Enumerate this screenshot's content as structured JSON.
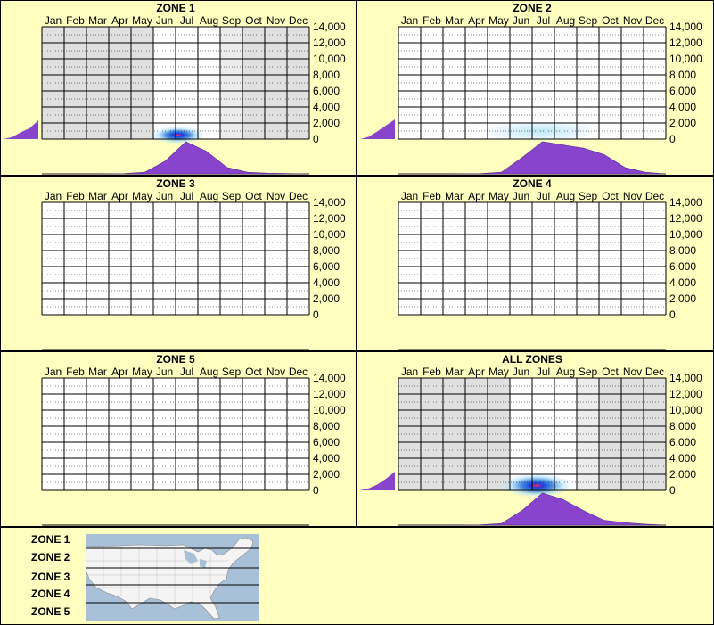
{
  "months": [
    "Jan",
    "Feb",
    "Mar",
    "Apr",
    "May",
    "Jun",
    "Jul",
    "Aug",
    "Sep",
    "Oct",
    "Nov",
    "Dec"
  ],
  "elevation_ticks": [
    "14,000",
    "12,000",
    "10,000",
    "8,000",
    "6,000",
    "4,000",
    "2,000",
    "0"
  ],
  "colors": {
    "background": "#ffffc0",
    "inactive_month": "#e0e0e0",
    "active_month": "#ffffff",
    "density": "#8844cc",
    "heat_low": "#aadfff",
    "heat_mid": "#1a3fdd",
    "heat_high": "#ff2266"
  },
  "chart_data": [
    {
      "type": "heatmap",
      "title": "ZONE 1",
      "x": [
        "Jan",
        "Feb",
        "Mar",
        "Apr",
        "May",
        "Jun",
        "Jul",
        "Aug",
        "Sep",
        "Oct",
        "Nov",
        "Dec"
      ],
      "ylim": [
        0,
        14000
      ],
      "grey_months": [
        "Jan",
        "Feb",
        "Mar",
        "Apr",
        "May",
        "Sep",
        "Oct",
        "Nov",
        "Dec"
      ],
      "lighter_grey_months": [
        "Sep"
      ],
      "hotspots": [
        {
          "month_index": 6.1,
          "elevation": 500,
          "intensity": 0.9,
          "spread_months": 1.2,
          "spread_elev": 1100
        }
      ],
      "month_density": [
        0,
        0,
        0,
        0,
        0.01,
        0.05,
        0.4,
        1.0,
        0.7,
        0.2,
        0.05,
        0.02,
        0.01,
        0
      ],
      "elevation_density": [
        0,
        0.1,
        0.35,
        0.55,
        0.95
      ]
    },
    {
      "type": "heatmap",
      "title": "ZONE 2",
      "x": [
        "Jan",
        "Feb",
        "Mar",
        "Apr",
        "May",
        "Jun",
        "Jul",
        "Aug",
        "Sep",
        "Oct",
        "Nov",
        "Dec"
      ],
      "ylim": [
        0,
        14000
      ],
      "grey_months": [],
      "lighter_grey_months": [],
      "hotspots": [
        {
          "month_index": 6.4,
          "elevation": 1000,
          "intensity": 0.25,
          "spread_months": 2.6,
          "spread_elev": 1300
        }
      ],
      "month_density": [
        0,
        0,
        0,
        0,
        0.01,
        0.05,
        0.5,
        1.0,
        0.9,
        0.8,
        0.6,
        0.2,
        0.05,
        0
      ],
      "elevation_density": [
        0,
        0.12,
        0.4,
        0.7,
        1.0
      ]
    },
    {
      "type": "heatmap",
      "title": "ZONE 3",
      "x": [
        "Jan",
        "Feb",
        "Mar",
        "Apr",
        "May",
        "Jun",
        "Jul",
        "Aug",
        "Sep",
        "Oct",
        "Nov",
        "Dec"
      ],
      "ylim": [
        0,
        14000
      ],
      "grey_months": [],
      "lighter_grey_months": [],
      "hotspots": [],
      "month_density": [],
      "elevation_density": []
    },
    {
      "type": "heatmap",
      "title": "ZONE 4",
      "x": [
        "Jan",
        "Feb",
        "Mar",
        "Apr",
        "May",
        "Jun",
        "Jul",
        "Aug",
        "Sep",
        "Oct",
        "Nov",
        "Dec"
      ],
      "ylim": [
        0,
        14000
      ],
      "grey_months": [],
      "lighter_grey_months": [],
      "hotspots": [],
      "month_density": [],
      "elevation_density": []
    },
    {
      "type": "heatmap",
      "title": "ZONE 5",
      "x": [
        "Jan",
        "Feb",
        "Mar",
        "Apr",
        "May",
        "Jun",
        "Jul",
        "Aug",
        "Sep",
        "Oct",
        "Nov",
        "Dec"
      ],
      "ylim": [
        0,
        14000
      ],
      "grey_months": [],
      "lighter_grey_months": [],
      "hotspots": [],
      "month_density": [],
      "elevation_density": []
    },
    {
      "type": "heatmap",
      "title": "ALL ZONES",
      "x": [
        "Jan",
        "Feb",
        "Mar",
        "Apr",
        "May",
        "Jun",
        "Jul",
        "Aug",
        "Sep",
        "Oct",
        "Nov",
        "Dec"
      ],
      "ylim": [
        0,
        14000
      ],
      "grey_months": [
        "Jan",
        "Feb",
        "Mar",
        "Apr",
        "May",
        "Sep",
        "Oct",
        "Nov",
        "Dec"
      ],
      "lighter_grey_months": [
        "Sep"
      ],
      "hotspots": [
        {
          "month_index": 6.2,
          "elevation": 600,
          "intensity": 1.0,
          "spread_months": 1.6,
          "spread_elev": 1500
        }
      ],
      "month_density": [
        0,
        0,
        0,
        0,
        0.01,
        0.05,
        0.45,
        1.0,
        0.8,
        0.45,
        0.15,
        0.08,
        0.03,
        0
      ],
      "elevation_density": [
        0,
        0.1,
        0.3,
        0.6,
        0.95
      ]
    }
  ],
  "legend": {
    "zones": [
      "ZONE 1",
      "ZONE 2",
      "ZONE 3",
      "ZONE 4",
      "ZONE 5"
    ]
  }
}
